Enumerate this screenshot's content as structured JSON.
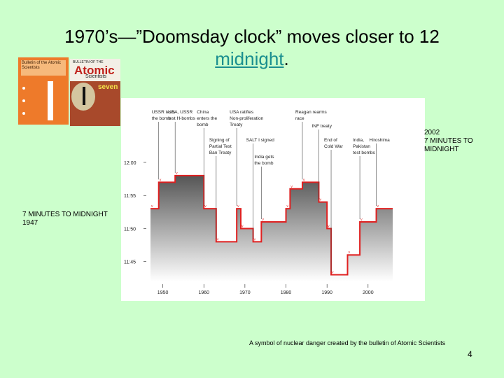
{
  "slide": {
    "title_before": "1970’s—”Doomsday clock” moves closer to 12",
    "title_link": "midnight",
    "title_after": ".",
    "background": "#ccffcc",
    "callout_left": [
      "7 MINUTES TO MIDNIGHT",
      "1947"
    ],
    "callout_right": [
      "2002",
      "7 MINUTES TO",
      "MIDNIGHT"
    ],
    "caption": "A symbol of nuclear danger created by the bulletin of Atomic Scientists",
    "page_number": "4"
  },
  "covers": {
    "left": {
      "title": "Bulletin of the Atomic Scientists",
      "color": "#ee7a2a"
    },
    "right": {
      "kicker": "BULLETIN OF THE",
      "title_big": "Atomic",
      "title_small": "Scientists",
      "badge": "seven",
      "color": "#a8492b"
    }
  },
  "chart_data": {
    "type": "area",
    "x_unit": "year",
    "y_unit": "minutes before midnight",
    "xlim": [
      1947,
      2006
    ],
    "x_ticks": [
      1950,
      1960,
      1970,
      1980,
      1990,
      2000
    ],
    "x_tick_labels": [
      "1950",
      "1960",
      "1970",
      "1980",
      "1990",
      "2000"
    ],
    "y_ticks": [
      15,
      10,
      5,
      0
    ],
    "y_tick_labels": [
      "11:45",
      "11:50",
      "11:55",
      "12:00"
    ],
    "ylim": [
      0,
      18
    ],
    "fill_color": "#777777",
    "line_color": "#e02020",
    "steps": [
      {
        "year": 1947,
        "minutes": 7
      },
      {
        "year": 1949,
        "minutes": 3
      },
      {
        "year": 1953,
        "minutes": 2
      },
      {
        "year": 1960,
        "minutes": 7
      },
      {
        "year": 1963,
        "minutes": 12
      },
      {
        "year": 1968,
        "minutes": 7
      },
      {
        "year": 1969,
        "minutes": 10
      },
      {
        "year": 1972,
        "minutes": 12
      },
      {
        "year": 1974,
        "minutes": 9
      },
      {
        "year": 1980,
        "minutes": 7
      },
      {
        "year": 1981,
        "minutes": 4
      },
      {
        "year": 1984,
        "minutes": 3
      },
      {
        "year": 1988,
        "minutes": 6
      },
      {
        "year": 1990,
        "minutes": 10
      },
      {
        "year": 1991,
        "minutes": 17
      },
      {
        "year": 1995,
        "minutes": 14
      },
      {
        "year": 1998,
        "minutes": 9
      },
      {
        "year": 2002,
        "minutes": 7
      }
    ],
    "annotations": [
      {
        "year": 1949,
        "lines": [
          "USSR tests",
          "the bomb"
        ],
        "row": "top"
      },
      {
        "year": 1953,
        "lines": [
          "USA, USSR",
          "test H-bombs"
        ],
        "row": "top"
      },
      {
        "year": 1960,
        "lines": [
          "China",
          "enters the",
          "bomb"
        ],
        "row": "top"
      },
      {
        "year": 1968,
        "lines": [
          "USA ratifies",
          "Non-proliferation",
          "Treaty"
        ],
        "row": "top"
      },
      {
        "year": 1984,
        "lines": [
          "Reagan rearms",
          "race"
        ],
        "row": "top"
      },
      {
        "year": 1963,
        "lines": [
          "Signing of",
          "Partial Test",
          "Ban Treaty"
        ],
        "row": "middle"
      },
      {
        "year": 1972,
        "lines": [
          "SALT I signed"
        ],
        "row": "middle"
      },
      {
        "year": 1974,
        "lines": [
          "India gets",
          "the bomb"
        ],
        "row": "lower"
      },
      {
        "year": 1988,
        "lines": [
          "INF treaty"
        ],
        "row": "upper"
      },
      {
        "year": 1991,
        "lines": [
          "End of",
          "Cold War"
        ],
        "row": "middle"
      },
      {
        "year": 1998,
        "lines": [
          "India,",
          "Pakistan",
          "test bombs"
        ],
        "row": "middle"
      },
      {
        "year": 2002,
        "lines": [
          "Hiroshima"
        ],
        "row": "middle"
      }
    ]
  }
}
